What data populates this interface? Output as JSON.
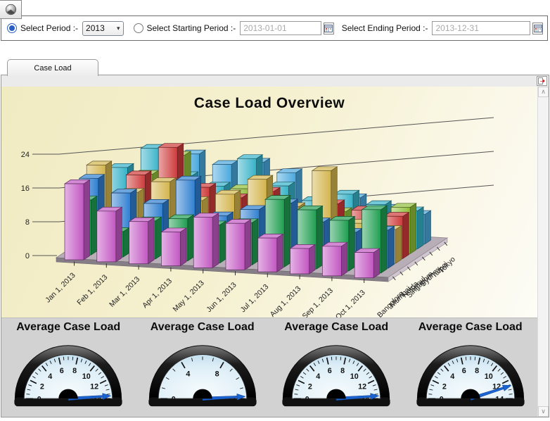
{
  "window": {
    "corner_icon": "sphere-icon"
  },
  "toolbar": {
    "select_period": {
      "label": "Select Period :-",
      "selected": true,
      "value": "2013"
    },
    "select_starting": {
      "label": "Select Starting Period :-",
      "selected": false,
      "value": "2013-01-01"
    },
    "select_ending": {
      "label": "Select Ending Period :-",
      "value": "2013-12-31"
    }
  },
  "tabs": [
    {
      "label": "Case Load",
      "active": true
    }
  ],
  "scrollbar": {
    "up_glyph": "∧",
    "down_glyph": "∨"
  },
  "chart_data": [
    {
      "type": "bar",
      "projection": "3d-grouped",
      "title": "Case Load Overview",
      "background": "#f4eecb",
      "ylim": [
        0,
        24
      ],
      "yticks": [
        0,
        8,
        16,
        24
      ],
      "legend": "none",
      "values_estimated": true,
      "categories": [
        "Jan 1, 2013",
        "Feb 1, 2013",
        "Mar 1, 2013",
        "Apr 1, 2013",
        "May 1, 2013",
        "Jun 1, 2013",
        "Jul 1, 2013",
        "Aug 1, 2013",
        "Sep 1, 2013",
        "Oct 1, 2013"
      ],
      "series": [
        {
          "name": "Bangalore",
          "color": "#C257C2",
          "values": [
            18,
            12,
            10,
            8,
            12,
            11,
            8,
            6,
            7,
            6
          ]
        },
        {
          "name": "Mumbai",
          "color": "#1E9E50",
          "values": [
            13,
            6,
            9,
            10,
            9,
            10,
            16,
            14,
            12,
            15
          ]
        },
        {
          "name": "Noida",
          "color": "#2F7FD0",
          "values": [
            17,
            14,
            12,
            18,
            10,
            12,
            14,
            10,
            8,
            9
          ]
        },
        {
          "name": "Seoul",
          "color": "#D3B44C",
          "values": [
            19,
            13,
            16,
            12,
            14,
            18,
            12,
            21,
            9,
            8
          ]
        },
        {
          "name": "Singapore",
          "color": "#CF3A3A",
          "values": [
            10,
            16,
            23,
            14,
            12,
            14,
            10,
            12,
            11,
            10
          ]
        },
        {
          "name": "Sydney",
          "color": "#8FBE3A",
          "values": [
            8,
            15,
            20,
            9,
            13,
            11,
            8,
            9,
            7,
            11
          ]
        },
        {
          "name": "Taipei",
          "color": "#35B2C8",
          "values": [
            15,
            20,
            14,
            12,
            19,
            13,
            10,
            12,
            10,
            9
          ]
        },
        {
          "name": "Tokyo",
          "color": "#49A8DD",
          "values": [
            12,
            10,
            18,
            16,
            17,
            15,
            9,
            10,
            8,
            7
          ]
        }
      ]
    },
    {
      "type": "gauge",
      "title": "Average Case Load",
      "min": 0,
      "max": 14,
      "value": 13.7,
      "tick_labels": [
        0,
        2,
        4,
        6,
        8,
        10,
        12,
        14
      ],
      "minor_tick_step": 0.5,
      "needle_color": "#1B63D1"
    },
    {
      "type": "gauge",
      "title": "Average Case Load",
      "min": 0,
      "max": 12,
      "value": 11.8,
      "tick_labels": [
        0,
        4,
        8,
        12
      ],
      "minor_tick_step": 1,
      "needle_color": "#1B63D1"
    },
    {
      "type": "gauge",
      "title": "Average Case Load",
      "min": 0,
      "max": 14,
      "value": 13.7,
      "tick_labels": [
        0,
        2,
        4,
        6,
        8,
        10,
        12,
        14
      ],
      "minor_tick_step": 0.5,
      "needle_color": "#1B63D1"
    },
    {
      "type": "gauge",
      "title": "Average Case Load",
      "min": 0,
      "max": 14,
      "value": 12.6,
      "tick_labels": [
        0,
        2,
        4,
        6,
        8,
        10,
        12,
        14
      ],
      "minor_tick_step": 0.5,
      "needle_color": "#1B63D1"
    }
  ]
}
